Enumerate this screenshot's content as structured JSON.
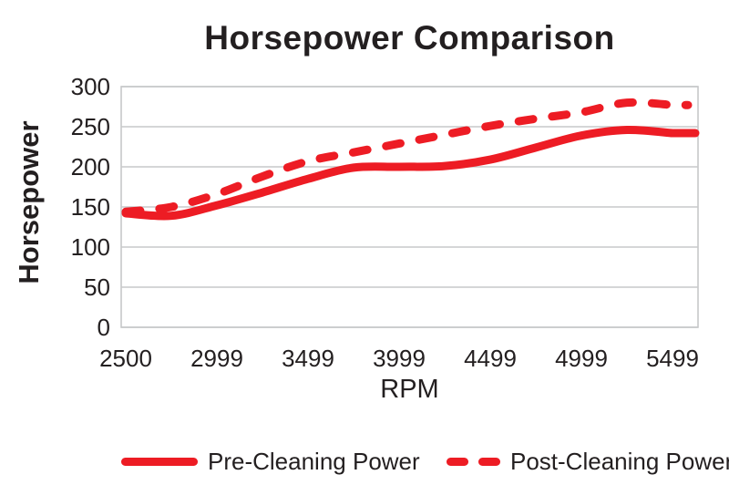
{
  "chart_data": {
    "type": "line",
    "title": "Horsepower Comparison",
    "xlabel": "RPM",
    "ylabel": "Horsepower",
    "ylim": [
      0,
      300
    ],
    "ytick_step": 50,
    "y_tick_labels": [
      "300",
      "250",
      "200",
      "150",
      "100",
      "50",
      "0"
    ],
    "x": [
      2500,
      2750,
      2999,
      3249,
      3499,
      3749,
      3999,
      4249,
      4499,
      4749,
      4999,
      5249,
      5499
    ],
    "x_tick_labels": [
      "2500",
      "2999",
      "3499",
      "3999",
      "4499",
      "4999",
      "5499"
    ],
    "series": [
      {
        "name": "Pre-Cleaning Power",
        "style": "solid",
        "values": [
          142,
          139,
          152,
          168,
          185,
          199,
          200,
          201,
          209,
          224,
          239,
          246,
          242
        ]
      },
      {
        "name": "Post-Cleaning Power",
        "style": "dashed",
        "values": [
          144,
          150,
          166,
          188,
          207,
          218,
          229,
          240,
          251,
          260,
          268,
          280,
          277
        ]
      }
    ],
    "line_color": "#ED1C24",
    "text_color": "#231F20",
    "grid_color": "#C7C8CA",
    "grid": true,
    "legend_position": "bottom"
  }
}
